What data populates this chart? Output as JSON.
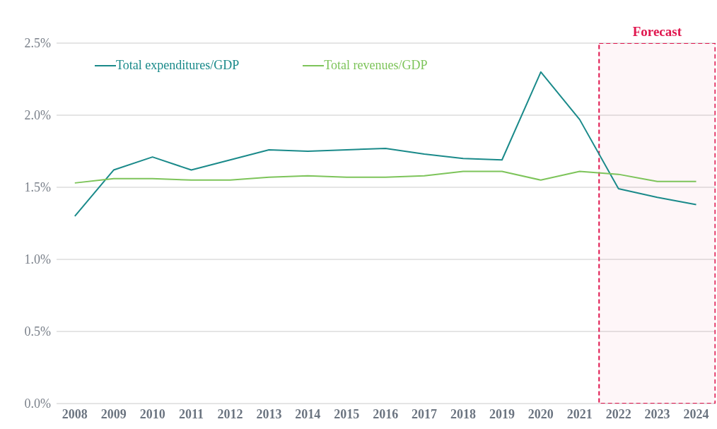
{
  "chart_data": {
    "type": "line",
    "categories": [
      "2008",
      "2009",
      "2010",
      "2011",
      "2012",
      "2013",
      "2014",
      "2015",
      "2016",
      "2017",
      "2018",
      "2019",
      "2020",
      "2021",
      "2022",
      "2023",
      "2024"
    ],
    "series": [
      {
        "name": "Total expenditures/GDP",
        "color": "#1a8a8a",
        "values": [
          1.3,
          1.62,
          1.71,
          1.62,
          1.69,
          1.76,
          1.75,
          1.76,
          1.77,
          1.73,
          1.7,
          1.69,
          2.3,
          1.97,
          1.49,
          1.43,
          1.38
        ]
      },
      {
        "name": "Total revenues/GDP",
        "color": "#7dc45a",
        "values": [
          1.53,
          1.56,
          1.56,
          1.55,
          1.55,
          1.57,
          1.58,
          1.57,
          1.57,
          1.58,
          1.61,
          1.61,
          1.55,
          1.61,
          1.59,
          1.54,
          1.54
        ]
      }
    ],
    "ylim": [
      0,
      2.5
    ],
    "yticks": [
      {
        "value": 0,
        "label": "0.0%"
      },
      {
        "value": 0.5,
        "label": "0.5%"
      },
      {
        "value": 1,
        "label": "1.0%"
      },
      {
        "value": 1.5,
        "label": "1.5%"
      },
      {
        "value": 2,
        "label": "2.0%"
      },
      {
        "value": 2.5,
        "label": "2.5%"
      }
    ],
    "grid": "y",
    "legend": "top left",
    "marker": "none",
    "line_style": "solid",
    "bands": [
      {
        "axis": "x",
        "from": "2022",
        "to": "2024",
        "label": "Forecast",
        "color": "#e0174f"
      }
    ]
  }
}
